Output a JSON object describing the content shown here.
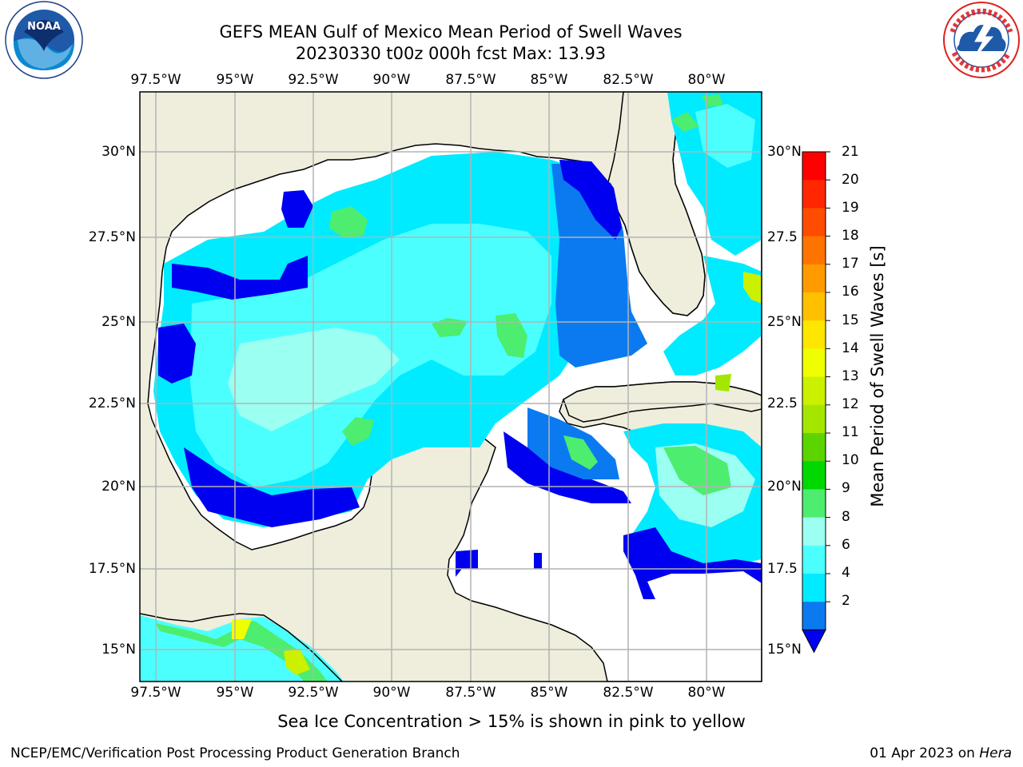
{
  "title": {
    "line1": "GEFS MEAN Gulf of Mexico Mean Period of Swell Waves",
    "line2": "20230330 t00z 000h fcst   Max: 13.93"
  },
  "map": {
    "lon_labels": [
      "97.5°W",
      "95°W",
      "92.5°W",
      "90°W",
      "87.5°W",
      "85°W",
      "82.5°W",
      "80°W"
    ],
    "lat_labels_left": [
      "30°N",
      "27.5°N",
      "25°N",
      "22.5°N",
      "20°N",
      "17.5°N",
      "15°N"
    ],
    "lat_labels_right": [
      "30°N",
      "27.5",
      "25°N",
      "22.5",
      "20°N",
      "17.5",
      "15°N"
    ],
    "lon_range": [
      -98.1,
      -78.4
    ],
    "lat_range": [
      14.0,
      31.6
    ],
    "colors": {
      "land": "#efeddc",
      "ocean_missing": "#ffffff",
      "gridline": "#b3b3b3"
    }
  },
  "colorbar": {
    "title": "Mean Period of Swell Waves [s]",
    "ticks": [
      "21",
      "20",
      "19",
      "18",
      "17",
      "16",
      "15",
      "14",
      "13",
      "12",
      "11",
      "10",
      "9",
      "8",
      "6",
      "4",
      "2"
    ],
    "colors": [
      "#ff0000",
      "#ff2600",
      "#ff4c00",
      "#ff7400",
      "#ff9a00",
      "#ffc000",
      "#ffe600",
      "#f0ff00",
      "#cbf000",
      "#a5e600",
      "#5cd400",
      "#00d800",
      "#4ded6f",
      "#9bfff1",
      "#4cffff",
      "#00ebff",
      "#0b7af0",
      "#0000f0"
    ]
  },
  "note": "Sea Ice Concentration > 15% is shown in pink to yellow",
  "footer": {
    "left": "NCEP/EMC/Verification Post Processing Product Generation Branch",
    "right_date": "01 Apr 2023 on ",
    "right_host": "Hera"
  },
  "logos": {
    "left": "NOAA",
    "right": "NATIONAL WEATHER SERVICE"
  }
}
